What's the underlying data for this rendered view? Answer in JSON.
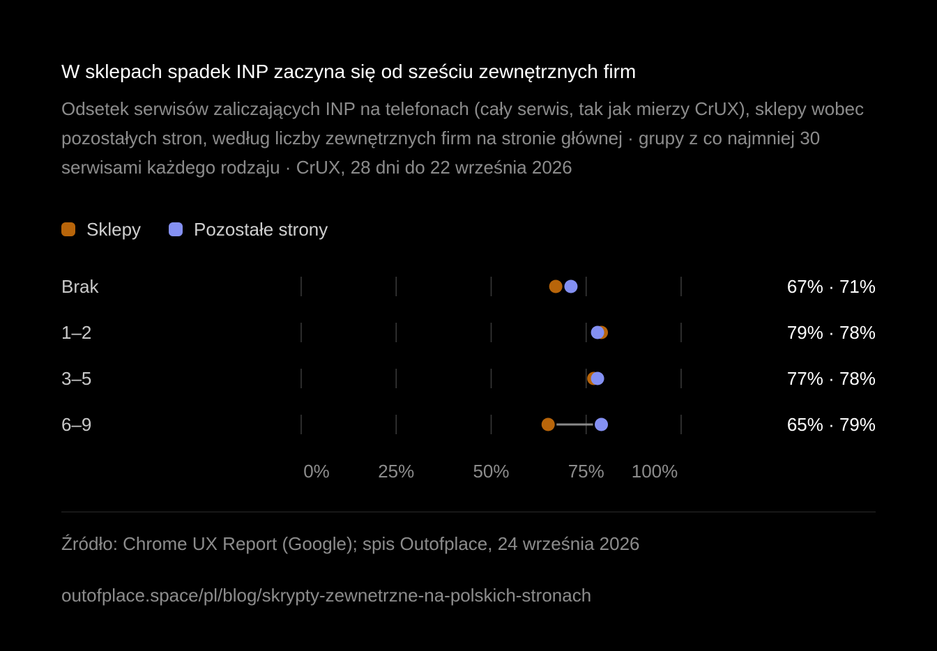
{
  "header": {
    "title": "W sklepach spadek INP zaczyna się od sześciu zewnętrznych firm",
    "subtitle": "Odsetek serwisów zaliczających INP na telefonach (cały serwis, tak jak mierzy CrUX), sklepy wobec pozostałych stron, według liczby zewnętrznych firm na stronie głównej · grupy z co najmniej 30 serwisami każdego rodzaju · CrUX, 28 dni do 22 września 2026"
  },
  "legend": [
    {
      "label": "Sklepy",
      "color": "#b8650a"
    },
    {
      "label": "Pozostałe strony",
      "color": "#8490f2"
    }
  ],
  "chart_data": {
    "type": "scatter",
    "subtype": "dumbbell",
    "title": "W sklepach spadek INP zaczyna się od sześciu zewnętrznych firm",
    "categories": [
      "Brak",
      "1–2",
      "3–5",
      "6–9"
    ],
    "series": [
      {
        "name": "Sklepy",
        "color": "#b8650a",
        "values": [
          67,
          79,
          77,
          65
        ]
      },
      {
        "name": "Pozostałe strony",
        "color": "#8490f2",
        "values": [
          71,
          78,
          78,
          79
        ]
      }
    ],
    "value_labels": [
      "67% · 71%",
      "79% · 78%",
      "77% · 78%",
      "65% · 79%"
    ],
    "xlim": [
      0,
      100
    ],
    "xticks": [
      "0%",
      "25%",
      "50%",
      "75%",
      "100%"
    ],
    "xtick_values": [
      0,
      25,
      50,
      75,
      100
    ],
    "grid": true,
    "legend_position": "top-left"
  },
  "footer": {
    "source": "Źródło: Chrome UX Report (Google); spis Outofplace, 24 września 2026",
    "url": "outofplace.space/pl/blog/skrypty-zewnetrzne-na-polskich-stronach"
  }
}
